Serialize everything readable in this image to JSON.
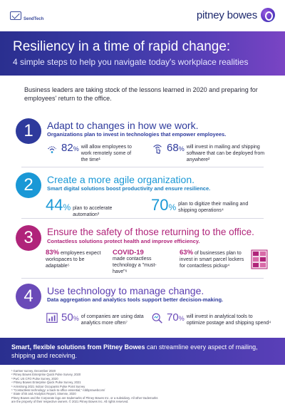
{
  "header": {
    "sendtech_label": "SendTech",
    "brand_name": "pitney bowes"
  },
  "hero": {
    "title": "Resiliency in a time of rapid change:",
    "subtitle": "4 simple steps to help you navigate today's workplace realities"
  },
  "intro": "Business leaders are taking stock of the lessons learned in 2020 and preparing for employees' return to the office.",
  "steps": [
    {
      "number": "1",
      "title": "Adapt to changes in how we work.",
      "subtitle": "Organizations plan to invest in technologies that empower employees.",
      "stats": [
        {
          "value": "82",
          "unit": "%",
          "text": "will allow employees to work remotely some of the time¹"
        },
        {
          "value": "68",
          "unit": "%",
          "text": "will invest in mailing and shipping software that can be deployed from anywhere²"
        }
      ]
    },
    {
      "number": "2",
      "title": "Create a more agile organization.",
      "subtitle": "Smart digital solutions boost productivity and ensure resilience.",
      "stats": [
        {
          "value": "44",
          "unit": "%",
          "text": "plan to accelerate automation³"
        },
        {
          "value": "70",
          "unit": "%",
          "text": "plan to digitize their mailing and shipping operations⁴"
        }
      ]
    },
    {
      "number": "3",
      "title": "Ensure the safety of those returning to the office.",
      "subtitle": "Contactless solutions protect health and improve efficiency.",
      "stats": [
        {
          "value": "83%",
          "text": "employees expect workspaces to be adaptable⁵"
        },
        {
          "value": "COVID-19",
          "text": "made contactless technology a \"must-have\"⁶"
        },
        {
          "value": "63%",
          "text": "of businesses plan to invest in smart parcel lockers for contactless pickup⁴"
        }
      ]
    },
    {
      "number": "4",
      "title": "Use technology to manage change.",
      "subtitle": "Data aggregation and analytics tools support better decision-making.",
      "stats": [
        {
          "value": "50",
          "unit": "%",
          "text": "of companies are using data analytics more often⁷"
        },
        {
          "value": "70",
          "unit": "%",
          "text": "will invest in analytical tools to optimize postage and shipping spend⁴"
        }
      ]
    }
  ],
  "footer": {
    "bold_text": "Smart, flexible solutions from Pitney Bowes",
    "text": " can streamline every aspect of mailing, shipping and receiving."
  },
  "notes": [
    "¹ Gartner survey, December 2020",
    "² Pitney Bowes Enterprise Quick Pulse Survey, 2020",
    "³ PwC US CFO Pulse Survey, 2020",
    "⁴ Pitney Bowes Enterprise Quick Pulse Survey, 2021",
    "⁵ Armstrong 2021 Indoor Occupants Pulse Point Survey",
    "⁶ \"Contactless technology: a back-to-office essential,\" robbprowebcom/",
    "⁷ State of BI and Analytics Report, Sisense, 2020",
    "Pitney Bowes and the Corporate logo are trademarks of Pitney Bowes Inc. or a subsidiary. All other trademarks",
    "are the property of their respective owners. © 2021 Pitney Bowes Inc. All rights reserved."
  ],
  "colors": {
    "primary": "#2e3a9c",
    "step2": "#1a98d6",
    "step3": "#b0247a",
    "step4": "#6a4ab8"
  }
}
